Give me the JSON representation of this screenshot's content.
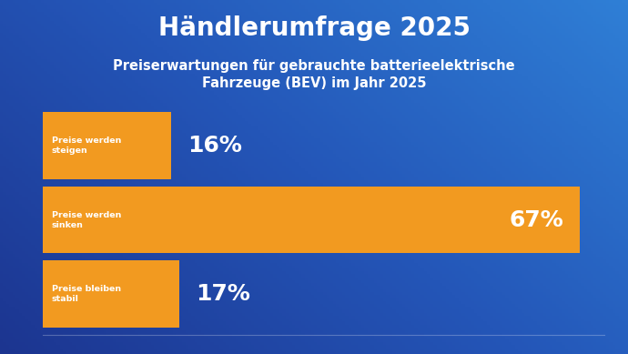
{
  "chart_data": {
    "type": "bar",
    "orientation": "horizontal",
    "title": "Händlerumfrage 2025",
    "subtitle": "Preiserwartungen für gebrauchte batterieelektrische\nFahrzeuge (BEV) im Jahr 2025",
    "categories": [
      "Preise werden steigen",
      "Preise werden sinken",
      "Preise bleiben stabil"
    ],
    "values": [
      16,
      67,
      17
    ],
    "value_labels": [
      "16%",
      "67%",
      "17%"
    ],
    "color": "#f29a20",
    "xlim": [
      0,
      70
    ],
    "data_labels": true,
    "tick_labels": false,
    "grid": false
  }
}
